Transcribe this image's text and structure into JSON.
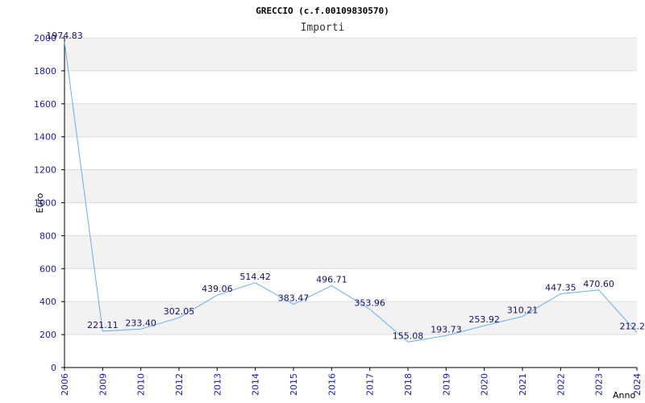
{
  "chart_data": {
    "type": "line",
    "title": "GRECCIO (c.f.00109830570)",
    "subtitle": "Importi",
    "xlabel": "Anno",
    "ylabel": "Euro",
    "categories": [
      "2006",
      "2009",
      "2010",
      "2012",
      "2013",
      "2014",
      "2015",
      "2016",
      "2017",
      "2018",
      "2019",
      "2020",
      "2021",
      "2022",
      "2023",
      "2024"
    ],
    "values": [
      1974.83,
      221.11,
      233.4,
      302.05,
      439.06,
      514.42,
      383.47,
      496.71,
      353.96,
      155.08,
      193.73,
      253.92,
      310.21,
      447.35,
      470.6,
      212.2
    ],
    "labels": [
      "1974.83",
      "221.11",
      "233.40",
      "302.05",
      "439.06",
      "514.42",
      "383.47",
      "496.71",
      "353.96",
      "155.08",
      "193.73",
      "253.92",
      "310.21",
      "447.35",
      "470.60",
      "212.2"
    ],
    "ylim": [
      0,
      2000
    ],
    "yticks": [
      0,
      200,
      400,
      600,
      800,
      1000,
      1200,
      1400,
      1600,
      1800,
      2000
    ],
    "grid": true,
    "line_color": "#6aaee8",
    "band_color": "#f2f2f2"
  }
}
